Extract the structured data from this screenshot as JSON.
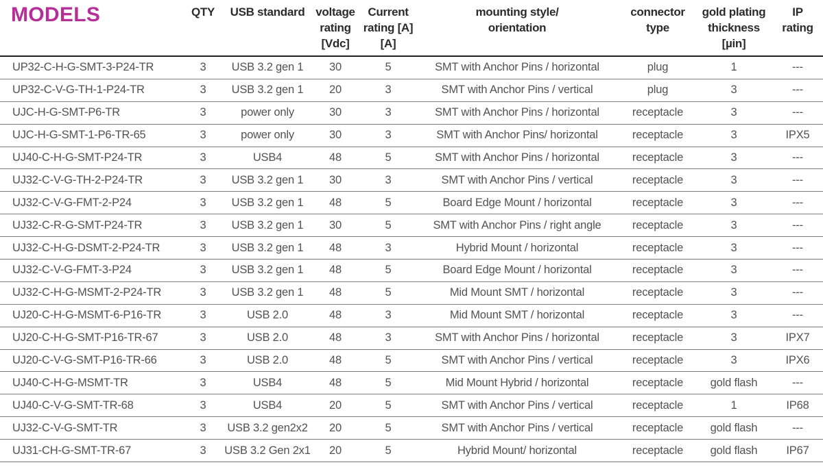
{
  "colors": {
    "accent_magenta": "#b72e99",
    "header_text": "#2b2b2b",
    "body_text": "#525252",
    "row_line": "#7b7b7b",
    "header_line": "#1f1f1f"
  },
  "table": {
    "columns": [
      {
        "id": "models",
        "lines": [
          "MODELS"
        ]
      },
      {
        "id": "qty",
        "lines": [
          "QTY"
        ]
      },
      {
        "id": "usb-standard",
        "lines": [
          "USB standard"
        ]
      },
      {
        "id": "voltage-rating",
        "lines": [
          "voltage",
          "rating",
          "[Vdc]"
        ]
      },
      {
        "id": "current-rating",
        "lines": [
          "Current",
          "rating [A]",
          "[A]"
        ]
      },
      {
        "id": "mounting-style",
        "lines": [
          "mounting style/",
          "orientation"
        ]
      },
      {
        "id": "connector-type",
        "lines": [
          "connector",
          "type"
        ]
      },
      {
        "id": "gold-plating",
        "lines": [
          "gold plating",
          "thickness",
          "[µin]"
        ]
      },
      {
        "id": "ip-rating",
        "lines": [
          "IP",
          "rating"
        ]
      }
    ],
    "rows": [
      [
        "UP32-C-H-G-SMT-3-P24-TR",
        "3",
        "USB 3.2 gen 1",
        "30",
        "5",
        "SMT with Anchor Pins / horizontal",
        "plug",
        "1",
        "---"
      ],
      [
        "UP32-C-V-G-TH-1-P24-TR",
        "3",
        "USB 3.2 gen 1",
        "20",
        "3",
        "SMT with Anchor Pins / vertical",
        "plug",
        "3",
        "---"
      ],
      [
        "UJC-H-G-SMT-P6-TR",
        "3",
        "power only",
        "30",
        "3",
        "SMT with Anchor Pins / horizontal",
        "receptacle",
        "3",
        "---"
      ],
      [
        "UJC-H-G-SMT-1-P6-TR-65",
        "3",
        "power only",
        "30",
        "3",
        "SMT with Anchor Pins/ horizontal",
        "receptacle",
        "3",
        "IPX5"
      ],
      [
        "UJ40-C-H-G-SMT-P24-TR",
        "3",
        "USB4",
        "48",
        "5",
        "SMT with Anchor Pins / horizontal",
        "receptacle",
        "3",
        "---"
      ],
      [
        "UJ32-C-V-G-TH-2-P24-TR",
        "3",
        "USB 3.2 gen 1",
        "30",
        "3",
        "SMT with Anchor Pins / vertical",
        "receptacle",
        "3",
        "---"
      ],
      [
        "UJ32-C-V-G-FMT-2-P24",
        "3",
        "USB 3.2 gen 1",
        "48",
        "5",
        "Board Edge Mount / horizontal",
        "receptacle",
        "3",
        "---"
      ],
      [
        "UJ32-C-R-G-SMT-P24-TR",
        "3",
        "USB 3.2 gen 1",
        "30",
        "5",
        "SMT with Anchor Pins / right angle",
        "receptacle",
        "3",
        "---"
      ],
      [
        "UJ32-C-H-G-DSMT-2-P24-TR",
        "3",
        "USB 3.2 gen 1",
        "48",
        "3",
        "Hybrid Mount / horizontal",
        "receptacle",
        "3",
        "---"
      ],
      [
        "UJ32-C-V-G-FMT-3-P24",
        "3",
        "USB 3.2 gen 1",
        "48",
        "5",
        "Board Edge Mount / horizontal",
        "receptacle",
        "3",
        "---"
      ],
      [
        "UJ32-C-H-G-MSMT-2-P24-TR",
        "3",
        "USB 3.2 gen 1",
        "48",
        "5",
        "Mid Mount SMT / horizontal",
        "receptacle",
        "3",
        "---"
      ],
      [
        "UJ20-C-H-G-MSMT-6-P16-TR",
        "3",
        "USB 2.0",
        "48",
        "3",
        "Mid Mount SMT / horizontal",
        "receptacle",
        "3",
        "---"
      ],
      [
        "UJ20-C-H-G-SMT-P16-TR-67",
        "3",
        "USB 2.0",
        "48",
        "3",
        "SMT with Anchor Pins / horizontal",
        "receptacle",
        "3",
        "IPX7"
      ],
      [
        "UJ20-C-V-G-SMT-P16-TR-66",
        "3",
        "USB 2.0",
        "48",
        "5",
        "SMT with Anchor Pins / vertical",
        "receptacle",
        "3",
        "IPX6"
      ],
      [
        "UJ40-C-H-G-MSMT-TR",
        "3",
        "USB4",
        "48",
        "5",
        "Mid Mount Hybrid / horizontal",
        "receptacle",
        "gold flash",
        "---"
      ],
      [
        "UJ40-C-V-G-SMT-TR-68",
        "3",
        "USB4",
        "20",
        "5",
        "SMT with Anchor Pins / vertical",
        "receptacle",
        "1",
        "IP68"
      ],
      [
        "UJ32-C-V-G-SMT-TR",
        "3",
        "USB 3.2 gen2x2",
        "20",
        "5",
        "SMT with Anchor Pins / vertical",
        "receptacle",
        "gold flash",
        "---"
      ],
      [
        "UJ31-CH-G-SMT-TR-67",
        "3",
        "USB 3.2 Gen 2x1",
        "20",
        "5",
        "Hybrid Mount/ horizontal",
        "receptacle",
        "gold flash",
        "IP67"
      ]
    ]
  }
}
